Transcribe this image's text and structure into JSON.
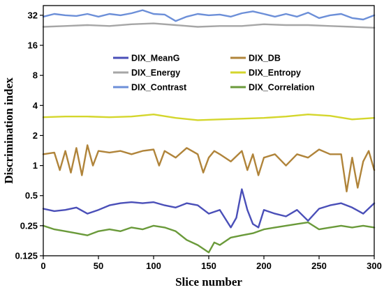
{
  "chart_data": {
    "type": "line",
    "xlabel": "Slice number",
    "ylabel": "Discrimination index",
    "y_scale": "log2",
    "xlim": [
      0,
      300
    ],
    "ylim": [
      0.125,
      40
    ],
    "x_ticks": [
      0,
      50,
      100,
      150,
      200,
      250,
      300
    ],
    "y_ticks": [
      {
        "value": 0.125,
        "label": "0.125"
      },
      {
        "value": 0.25,
        "label": "0.25"
      },
      {
        "value": 0.5,
        "label": "0.5"
      },
      {
        "value": 1,
        "label": "1"
      },
      {
        "value": 2,
        "label": "2"
      },
      {
        "value": 4,
        "label": "4"
      },
      {
        "value": 8,
        "label": "8"
      },
      {
        "value": 16,
        "label": "16"
      },
      {
        "value": 32,
        "label": "32"
      }
    ],
    "legend_position": "upper-middle, two columns",
    "series": [
      {
        "name": "DIX_MeanG",
        "color": "#4a4fb8",
        "x": [
          0,
          10,
          20,
          30,
          40,
          50,
          60,
          70,
          80,
          90,
          100,
          110,
          120,
          130,
          140,
          150,
          160,
          170,
          175,
          180,
          185,
          190,
          195,
          200,
          210,
          220,
          230,
          240,
          250,
          260,
          270,
          280,
          290,
          300
        ],
        "y": [
          0.37,
          0.35,
          0.36,
          0.38,
          0.33,
          0.36,
          0.4,
          0.42,
          0.43,
          0.42,
          0.43,
          0.4,
          0.38,
          0.42,
          0.4,
          0.33,
          0.36,
          0.24,
          0.3,
          0.58,
          0.36,
          0.26,
          0.24,
          0.36,
          0.33,
          0.31,
          0.36,
          0.28,
          0.37,
          0.4,
          0.42,
          0.38,
          0.33,
          0.42
        ]
      },
      {
        "name": "DIX_DB",
        "color": "#b0843a",
        "x": [
          0,
          10,
          15,
          20,
          25,
          30,
          35,
          40,
          45,
          50,
          60,
          70,
          80,
          90,
          100,
          105,
          110,
          120,
          130,
          140,
          145,
          150,
          155,
          160,
          170,
          180,
          185,
          190,
          195,
          200,
          210,
          220,
          230,
          240,
          250,
          260,
          270,
          275,
          280,
          285,
          290,
          295,
          300
        ],
        "y": [
          1.3,
          1.35,
          0.9,
          1.4,
          0.85,
          1.5,
          0.8,
          1.6,
          1.0,
          1.4,
          1.35,
          1.4,
          1.3,
          1.4,
          1.45,
          1.0,
          1.4,
          1.2,
          1.5,
          1.3,
          0.85,
          1.2,
          1.4,
          1.3,
          1.1,
          1.4,
          0.9,
          1.3,
          0.8,
          1.2,
          1.3,
          1.0,
          1.3,
          1.2,
          1.45,
          1.3,
          1.3,
          0.55,
          1.2,
          0.6,
          1.1,
          1.4,
          0.9
        ]
      },
      {
        "name": "DIX_Energy",
        "color": "#a6a6a6",
        "x": [
          0,
          20,
          40,
          60,
          80,
          100,
          120,
          140,
          160,
          180,
          200,
          220,
          240,
          260,
          280,
          300
        ],
        "y": [
          24.5,
          25.0,
          25.5,
          25.0,
          26.0,
          26.5,
          25.5,
          24.5,
          25.0,
          25.0,
          26.0,
          25.5,
          25.5,
          25.0,
          24.5,
          24.0
        ]
      },
      {
        "name": "DIX_Entropy",
        "color": "#d4d62c",
        "x": [
          0,
          20,
          40,
          60,
          80,
          100,
          120,
          140,
          160,
          180,
          200,
          220,
          240,
          260,
          280,
          300
        ],
        "y": [
          3.05,
          3.1,
          3.1,
          3.05,
          3.1,
          3.25,
          3.0,
          2.85,
          2.9,
          2.95,
          3.0,
          3.1,
          3.25,
          3.15,
          2.9,
          3.0
        ]
      },
      {
        "name": "DIX_Contrast",
        "color": "#6c8fd8",
        "x": [
          0,
          10,
          20,
          30,
          40,
          50,
          60,
          70,
          80,
          90,
          100,
          110,
          120,
          130,
          140,
          150,
          160,
          170,
          180,
          190,
          200,
          210,
          220,
          230,
          240,
          250,
          260,
          270,
          280,
          290,
          300
        ],
        "y": [
          31.0,
          33.0,
          32.0,
          31.5,
          33.0,
          31.0,
          33.0,
          32.0,
          33.5,
          36.0,
          33.0,
          32.5,
          28.0,
          31.0,
          33.0,
          32.0,
          32.5,
          31.0,
          33.5,
          35.0,
          33.0,
          31.0,
          33.0,
          31.0,
          34.0,
          30.0,
          32.0,
          33.0,
          30.0,
          29.0,
          32.0
        ]
      },
      {
        "name": "DIX_Correlation",
        "color": "#6a9a3a",
        "x": [
          0,
          10,
          20,
          30,
          40,
          50,
          60,
          70,
          80,
          90,
          100,
          110,
          120,
          130,
          140,
          150,
          155,
          160,
          170,
          180,
          190,
          200,
          210,
          220,
          230,
          240,
          250,
          260,
          270,
          280,
          290,
          300
        ],
        "y": [
          0.25,
          0.23,
          0.22,
          0.21,
          0.2,
          0.22,
          0.23,
          0.22,
          0.24,
          0.23,
          0.25,
          0.24,
          0.22,
          0.18,
          0.16,
          0.135,
          0.17,
          0.16,
          0.19,
          0.2,
          0.21,
          0.23,
          0.24,
          0.25,
          0.26,
          0.27,
          0.23,
          0.24,
          0.25,
          0.24,
          0.25,
          0.24
        ]
      }
    ]
  }
}
